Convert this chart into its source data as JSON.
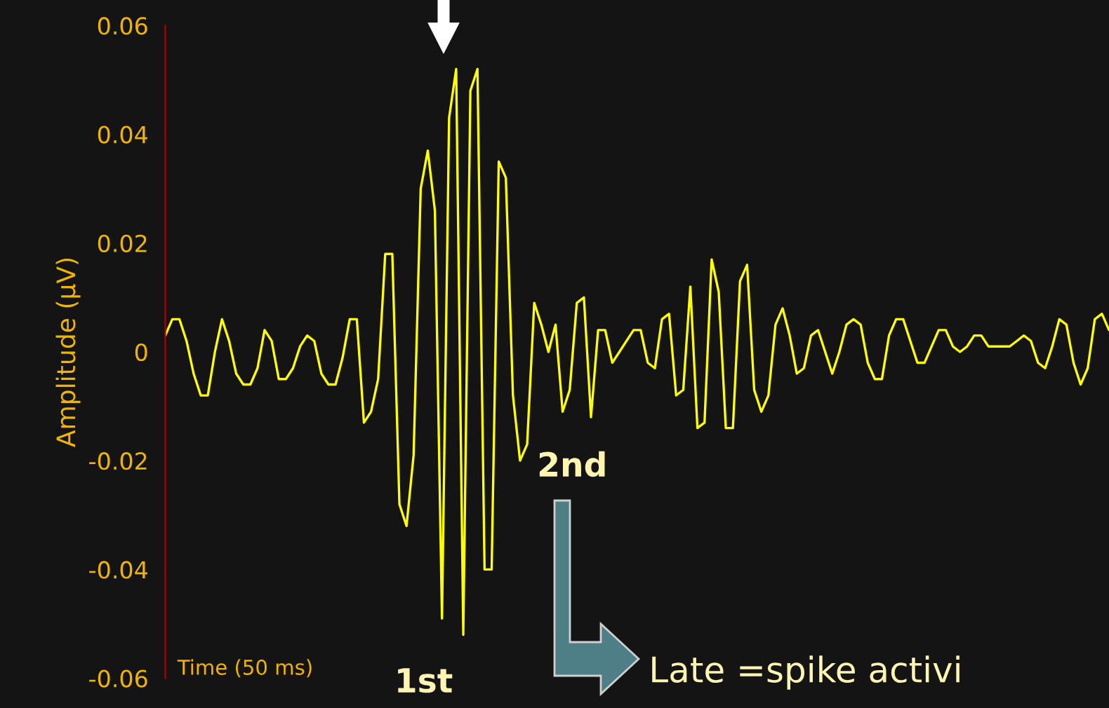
{
  "chart_data": {
    "type": "line",
    "xlabel": "Time (50 ms)",
    "ylabel": "Amplitude (µV)",
    "categories": [
      null,
      null,
      null,
      null,
      null,
      null,
      null,
      null,
      null,
      null,
      null,
      null,
      null,
      null,
      null,
      null,
      null,
      null,
      null,
      null,
      null,
      null,
      null,
      null,
      null,
      null,
      null,
      null,
      null,
      null,
      null,
      null,
      null,
      null,
      null,
      null,
      null,
      null,
      null,
      null,
      null,
      null,
      null,
      null,
      null,
      null,
      null,
      null,
      null,
      null,
      null,
      null,
      null,
      null,
      null,
      null,
      null,
      null,
      null,
      null,
      null,
      null,
      null,
      null,
      null,
      null,
      null,
      null,
      null,
      null,
      null,
      null,
      null,
      null,
      null,
      null,
      null,
      null,
      null,
      null,
      null,
      null,
      null,
      null,
      null,
      null,
      null,
      null,
      null,
      null,
      null,
      null,
      null,
      null,
      null,
      null,
      null,
      null,
      null,
      null,
      null,
      null,
      null,
      null,
      null,
      null,
      null,
      null,
      null,
      null,
      null,
      null,
      null,
      null,
      null,
      null,
      null,
      null,
      null,
      null,
      null,
      null,
      null,
      null,
      null,
      null,
      null,
      null,
      null,
      null,
      null,
      null,
      null,
      null
    ],
    "series": [
      {
        "color": "#ffff00",
        "values": [
          0.003,
          0.006,
          0.006,
          0.002,
          -0.004,
          -0.008,
          -0.008,
          0,
          0.006,
          0.002,
          -0.004,
          -0.006,
          -0.006,
          -0.003,
          0.004,
          0.002,
          -0.005,
          -0.005,
          -0.003,
          0.001,
          0.003,
          0.002,
          -0.004,
          -0.006,
          -0.006,
          -0.001,
          0.006,
          0.006,
          -0.013,
          -0.011,
          -0.005,
          0.018,
          0.018,
          -0.028,
          -0.032,
          -0.019,
          0.03,
          0.037,
          0.026,
          -0.049,
          0.043,
          0.052,
          -0.052,
          0.048,
          0.052,
          -0.04,
          -0.04,
          0.035,
          0.032,
          -0.008,
          -0.02,
          -0.017,
          0.009,
          0.005,
          0.0,
          0.005,
          -0.011,
          -0.007,
          0.009,
          0.01,
          -0.012,
          0.004,
          0.004,
          -0.002,
          0.0,
          0.002,
          0.004,
          0.004,
          -0.002,
          -0.003,
          0.006,
          0.007,
          -0.008,
          -0.007,
          0.012,
          -0.014,
          -0.013,
          0.017,
          0.011,
          -0.014,
          -0.014,
          0.013,
          0.016,
          -0.007,
          -0.011,
          -0.008,
          0.005,
          0.008,
          0.003,
          -0.004,
          -0.003,
          0.003,
          0.004,
          0.0,
          -0.004,
          0.0,
          0.005,
          0.006,
          0.005,
          -0.002,
          -0.005,
          -0.005,
          0.003,
          0.006,
          0.006,
          0.002,
          -0.002,
          -0.002,
          0.001,
          0.004,
          0.004,
          0.001,
          0.0,
          0.001,
          0.003,
          0.003,
          0.001,
          0.001,
          0.001,
          0.001,
          0.002,
          0.003,
          0.002,
          -0.002,
          -0.003,
          0.001,
          0.006,
          0.005,
          -0.002,
          -0.006,
          -0.003,
          0.006,
          0.007,
          0.004
        ]
      }
    ],
    "ylim": [
      -0.06,
      0.06
    ],
    "yticks": [
      -0.06,
      -0.04,
      -0.02,
      0,
      0.02,
      0.04,
      0.06
    ],
    "grid": false,
    "marker": "none",
    "line_style": "solid",
    "annotations": [
      "1st",
      "2nd",
      "Late =spike activi"
    ]
  }
}
